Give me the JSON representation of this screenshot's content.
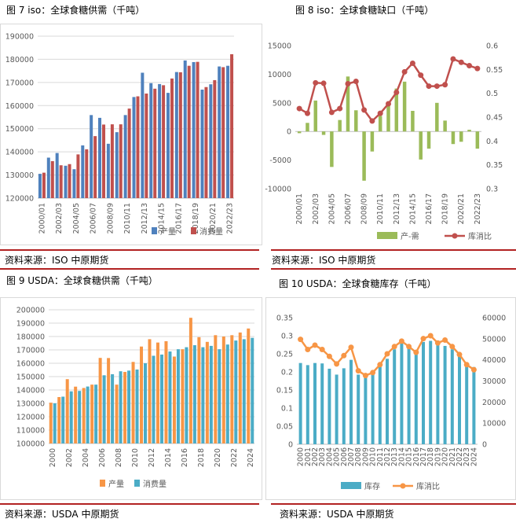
{
  "titles": {
    "c7": "图 7  iso：全球食糖供需（千吨）",
    "c8": "图 8  iso：全球食糖缺口（千吨）",
    "c9": "图 9  USDA：全球食糖供需（千吨）",
    "c10": "图 10  USDA：全球食糖库存（千吨）"
  },
  "sources": {
    "c7": "资料来源：ISO  中原期货",
    "c8": "资料来源：ISO  中原期货",
    "c9": "资料来源：USDA   中原期货",
    "c10": "资料来源：USDA   中原期货"
  },
  "colors": {
    "rule": "#b22222",
    "blue": "#4f81bd",
    "red": "#c0504d",
    "green": "#9bbb59",
    "orange": "#f79646",
    "teal": "#4bacc6",
    "grid": "#d9d9d9",
    "axis": "#595959"
  },
  "chart_data": [
    {
      "id": "c7",
      "type": "bar",
      "categories": [
        "2000/01",
        "2001/02",
        "2002/03",
        "2003/04",
        "2004/05",
        "2005/06",
        "2006/07",
        "2007/08",
        "2008/09",
        "2009/10",
        "2010/11",
        "2011/12",
        "2012/13",
        "2013/14",
        "2014/15",
        "2015/16",
        "2016/17",
        "2017/18",
        "2018/19",
        "2019/20",
        "2020/21",
        "2021/22",
        "2022/23"
      ],
      "tick_labels": [
        "2000/01",
        "2002/03",
        "2004/05",
        "2006/07",
        "2008/09",
        "2010/11",
        "2012/13",
        "2014/15",
        "2016/17",
        "2018/19",
        "2020/21",
        "2022/23"
      ],
      "series": [
        {
          "name": "产量",
          "values": [
            130500,
            137500,
            139500,
            134000,
            132500,
            142800,
            155900,
            154700,
            143500,
            148500,
            155900,
            163700,
            174200,
            169700,
            169300,
            165500,
            174500,
            179500,
            178800,
            166900,
            169200,
            176900,
            177200
          ]
        },
        {
          "name": "消费量",
          "values": [
            131000,
            136000,
            134200,
            134700,
            138900,
            141100,
            146800,
            151800,
            151900,
            151900,
            158700,
            164000,
            165200,
            167300,
            168800,
            171700,
            174400,
            177200,
            178900,
            168000,
            171000,
            176600,
            182200
          ]
        }
      ],
      "ylim": [
        120000,
        190000
      ],
      "yticks": [
        120000,
        130000,
        140000,
        150000,
        160000,
        170000,
        180000,
        190000
      ],
      "legend_position": "bottom"
    },
    {
      "id": "c8",
      "type": "bar+line",
      "categories": [
        "2000/01",
        "2001/02",
        "2002/03",
        "2003/04",
        "2004/05",
        "2005/06",
        "2006/07",
        "2007/08",
        "2008/09",
        "2009/10",
        "2010/11",
        "2011/12",
        "2012/13",
        "2013/14",
        "2014/15",
        "2015/16",
        "2016/17",
        "2017/18",
        "2018/19",
        "2019/20",
        "2020/21",
        "2021/22",
        "2022/23"
      ],
      "tick_labels": [
        "2000/01",
        "2002/03",
        "2004/05",
        "2006/07",
        "2008/09",
        "2010/11",
        "2012/13",
        "2014/15",
        "2016/17",
        "2018/19",
        "2020/21",
        "2022/23"
      ],
      "series": [
        {
          "name": "产-需",
          "axis": "left",
          "values": [
            -300,
            1500,
            5400,
            -600,
            -6200,
            2000,
            9600,
            3700,
            -8600,
            -3500,
            2700,
            4700,
            7500,
            8700,
            3600,
            -4900,
            -3000,
            5000,
            1900,
            -2200,
            -1800,
            300,
            -3000
          ]
        },
        {
          "name": "库消比",
          "axis": "right",
          "values": [
            0.468,
            0.458,
            0.522,
            0.521,
            0.46,
            0.468,
            0.52,
            0.525,
            0.465,
            0.442,
            0.458,
            0.478,
            0.502,
            0.545,
            0.563,
            0.538,
            0.515,
            0.515,
            0.518,
            0.572,
            0.565,
            0.558,
            0.552
          ]
        }
      ],
      "ylim": [
        -10000,
        15000
      ],
      "yticks": [
        -10000,
        -5000,
        0,
        5000,
        10000,
        15000
      ],
      "y2lim": [
        0.3,
        0.6
      ],
      "y2ticks": [
        0.3,
        0.35,
        0.4,
        0.45,
        0.5,
        0.55,
        0.6
      ],
      "legend_position": "bottom"
    },
    {
      "id": "c9",
      "type": "bar",
      "categories": [
        "2000",
        "2001",
        "2002",
        "2003",
        "2004",
        "2005",
        "2006",
        "2007",
        "2008",
        "2009",
        "2010",
        "2011",
        "2012",
        "2013",
        "2014",
        "2015",
        "2016",
        "2017",
        "2018",
        "2019",
        "2020",
        "2021",
        "2022",
        "2023",
        "2024"
      ],
      "tick_labels": [
        "2000",
        "2002",
        "2004",
        "2006",
        "2008",
        "2010",
        "2012",
        "2014",
        "2016",
        "2018",
        "2020",
        "2022",
        "2024"
      ],
      "series": [
        {
          "name": "产量",
          "values": [
            130500,
            134700,
            148100,
            142500,
            141500,
            144000,
            164000,
            163900,
            144000,
            153500,
            161000,
            172500,
            178000,
            175500,
            176500,
            165000,
            170500,
            194000,
            179500,
            176000,
            181000,
            180000,
            181000,
            183000,
            186000
          ]
        },
        {
          "name": "消费量",
          "values": [
            130000,
            135000,
            139000,
            139300,
            142600,
            144000,
            151000,
            151800,
            154000,
            154500,
            155300,
            160000,
            165600,
            166500,
            168800,
            170500,
            172000,
            173500,
            172000,
            173000,
            170500,
            174000,
            177000,
            178000,
            179000
          ]
        }
      ],
      "ylim": [
        100000,
        200000
      ],
      "yticks": [
        100000,
        110000,
        120000,
        130000,
        140000,
        150000,
        160000,
        170000,
        180000,
        190000,
        200000
      ],
      "legend_position": "bottom"
    },
    {
      "id": "c10",
      "type": "bar+line",
      "categories": [
        "2000",
        "2001",
        "2002",
        "2003",
        "2004",
        "2005",
        "2006",
        "2007",
        "2008",
        "2009",
        "2010",
        "2011",
        "2012",
        "2013",
        "2014",
        "2015",
        "2016",
        "2017",
        "2018",
        "2019",
        "2020",
        "2021",
        "2022",
        "2023",
        "2024"
      ],
      "tick_labels": [
        "2000",
        "2001",
        "2002",
        "2003",
        "2004",
        "2005",
        "2006",
        "2007",
        "2008",
        "2009",
        "2010",
        "2011",
        "2012",
        "2013",
        "2014",
        "2015",
        "2016",
        "2017",
        "2018",
        "2019",
        "2020",
        "2021",
        "2022",
        "2023",
        "2024"
      ],
      "series": [
        {
          "name": "库存",
          "axis": "right",
          "values": [
            38500,
            37500,
            38500,
            38300,
            35800,
            33000,
            36000,
            40000,
            33000,
            32200,
            33800,
            37300,
            40500,
            45000,
            48500,
            46400,
            44000,
            48500,
            49000,
            48300,
            46600,
            45000,
            42000,
            38700,
            36600
          ]
        },
        {
          "name": "库消比",
          "axis": "left",
          "values": [
            0.29,
            0.262,
            0.274,
            0.262,
            0.243,
            0.222,
            0.245,
            0.268,
            0.203,
            0.19,
            0.198,
            0.22,
            0.25,
            0.27,
            0.285,
            0.27,
            0.254,
            0.292,
            0.3,
            0.28,
            0.288,
            0.27,
            0.248,
            0.22,
            0.206
          ]
        }
      ],
      "ylim": [
        0,
        0.35
      ],
      "yticks": [
        0,
        0.05,
        0.1,
        0.15,
        0.2,
        0.25,
        0.3,
        0.35
      ],
      "y2lim": [
        0,
        60000
      ],
      "y2ticks": [
        0,
        10000,
        20000,
        30000,
        40000,
        50000,
        60000
      ],
      "legend_position": "bottom"
    }
  ]
}
